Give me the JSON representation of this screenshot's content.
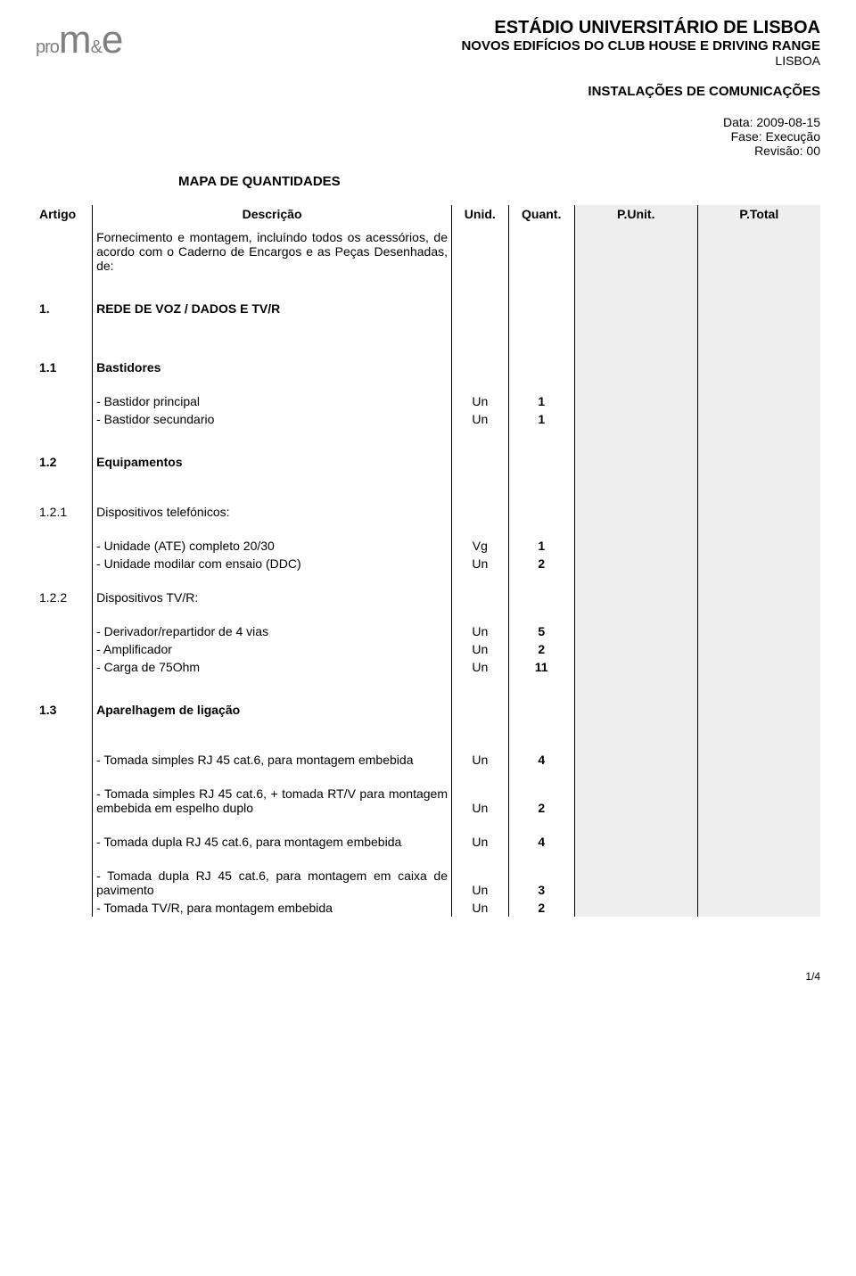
{
  "logo": {
    "pre": "pro",
    "m": "m",
    "amp": "&",
    "e": "e"
  },
  "header": {
    "title": "ESTÁDIO UNIVERSITÁRIO DE LISBOA",
    "subtitle": "NOVOS EDIFÍCIOS DO CLUB HOUSE  E DRIVING RANGE",
    "location": "LISBOA"
  },
  "section_title": "INSTALAÇÕES DE COMUNICAÇÕES",
  "meta": {
    "date": "Data: 2009-08-15",
    "phase": "Fase: Execução",
    "revision": "Revisão: 00"
  },
  "map_title": "MAPA DE QUANTIDADES",
  "columns": {
    "artigo": "Artigo",
    "descricao": "Descrição",
    "unid": "Unid.",
    "quant": "Quant.",
    "punit": "P.Unit.",
    "ptotal": "P.Total"
  },
  "intro": "Fornecimento e montagem, incluíndo todos os acessórios, de acordo com o Caderno de Encargos e as Peças Desenhadas, de:",
  "rows": [
    {
      "artigo": "1.",
      "desc": "REDE DE VOZ / DADOS E TV/R",
      "bold": true
    },
    {
      "artigo": "1.1",
      "desc": "Bastidores",
      "bold": true
    },
    {
      "desc": "- Bastidor principal",
      "unid": "Un",
      "quant": "1"
    },
    {
      "desc": "- Bastidor secundario",
      "unid": "Un",
      "quant": "1"
    },
    {
      "artigo": "1.2",
      "desc": "Equipamentos",
      "bold": true
    },
    {
      "artigo": "1.2.1",
      "desc": "Dispositivos telefónicos:"
    },
    {
      "desc": "- Unidade (ATE) completo 20/30",
      "unid": "Vg",
      "quant": "1"
    },
    {
      "desc": "- Unidade modilar com ensaio (DDC)",
      "unid": "Un",
      "quant": "2"
    },
    {
      "artigo": "1.2.2",
      "desc": "Dispositivos TV/R:"
    },
    {
      "desc": "- Derivador/repartidor de 4 vias",
      "unid": "Un",
      "quant": "5"
    },
    {
      "desc": "- Amplificador",
      "unid": "Un",
      "quant": "2"
    },
    {
      "desc": "- Carga de 75Ohm",
      "unid": "Un",
      "quant": "11"
    },
    {
      "artigo": "1.3",
      "desc": "Aparelhagem de ligação",
      "bold": true
    },
    {
      "desc": " - Tomada simples RJ 45 cat.6, para montagem embebida",
      "unid": "Un",
      "quant": "4",
      "justify": true
    },
    {
      "desc": " - Tomada simples RJ 45 cat.6, + tomada RT/V para montagem embebida em espelho duplo",
      "unid": "Un",
      "quant": "2",
      "justify": true
    },
    {
      "desc": " - Tomada dupla RJ 45 cat.6, para montagem embebida",
      "unid": "Un",
      "quant": "4",
      "justify": true
    },
    {
      "desc": " - Tomada dupla RJ 45 cat.6, para montagem em caixa de pavimento",
      "unid": "Un",
      "quant": "3",
      "justify": true
    },
    {
      "desc": "- Tomada TV/R, para montagem embebida",
      "unid": "Un",
      "quant": "2"
    }
  ],
  "footer": "1/4"
}
